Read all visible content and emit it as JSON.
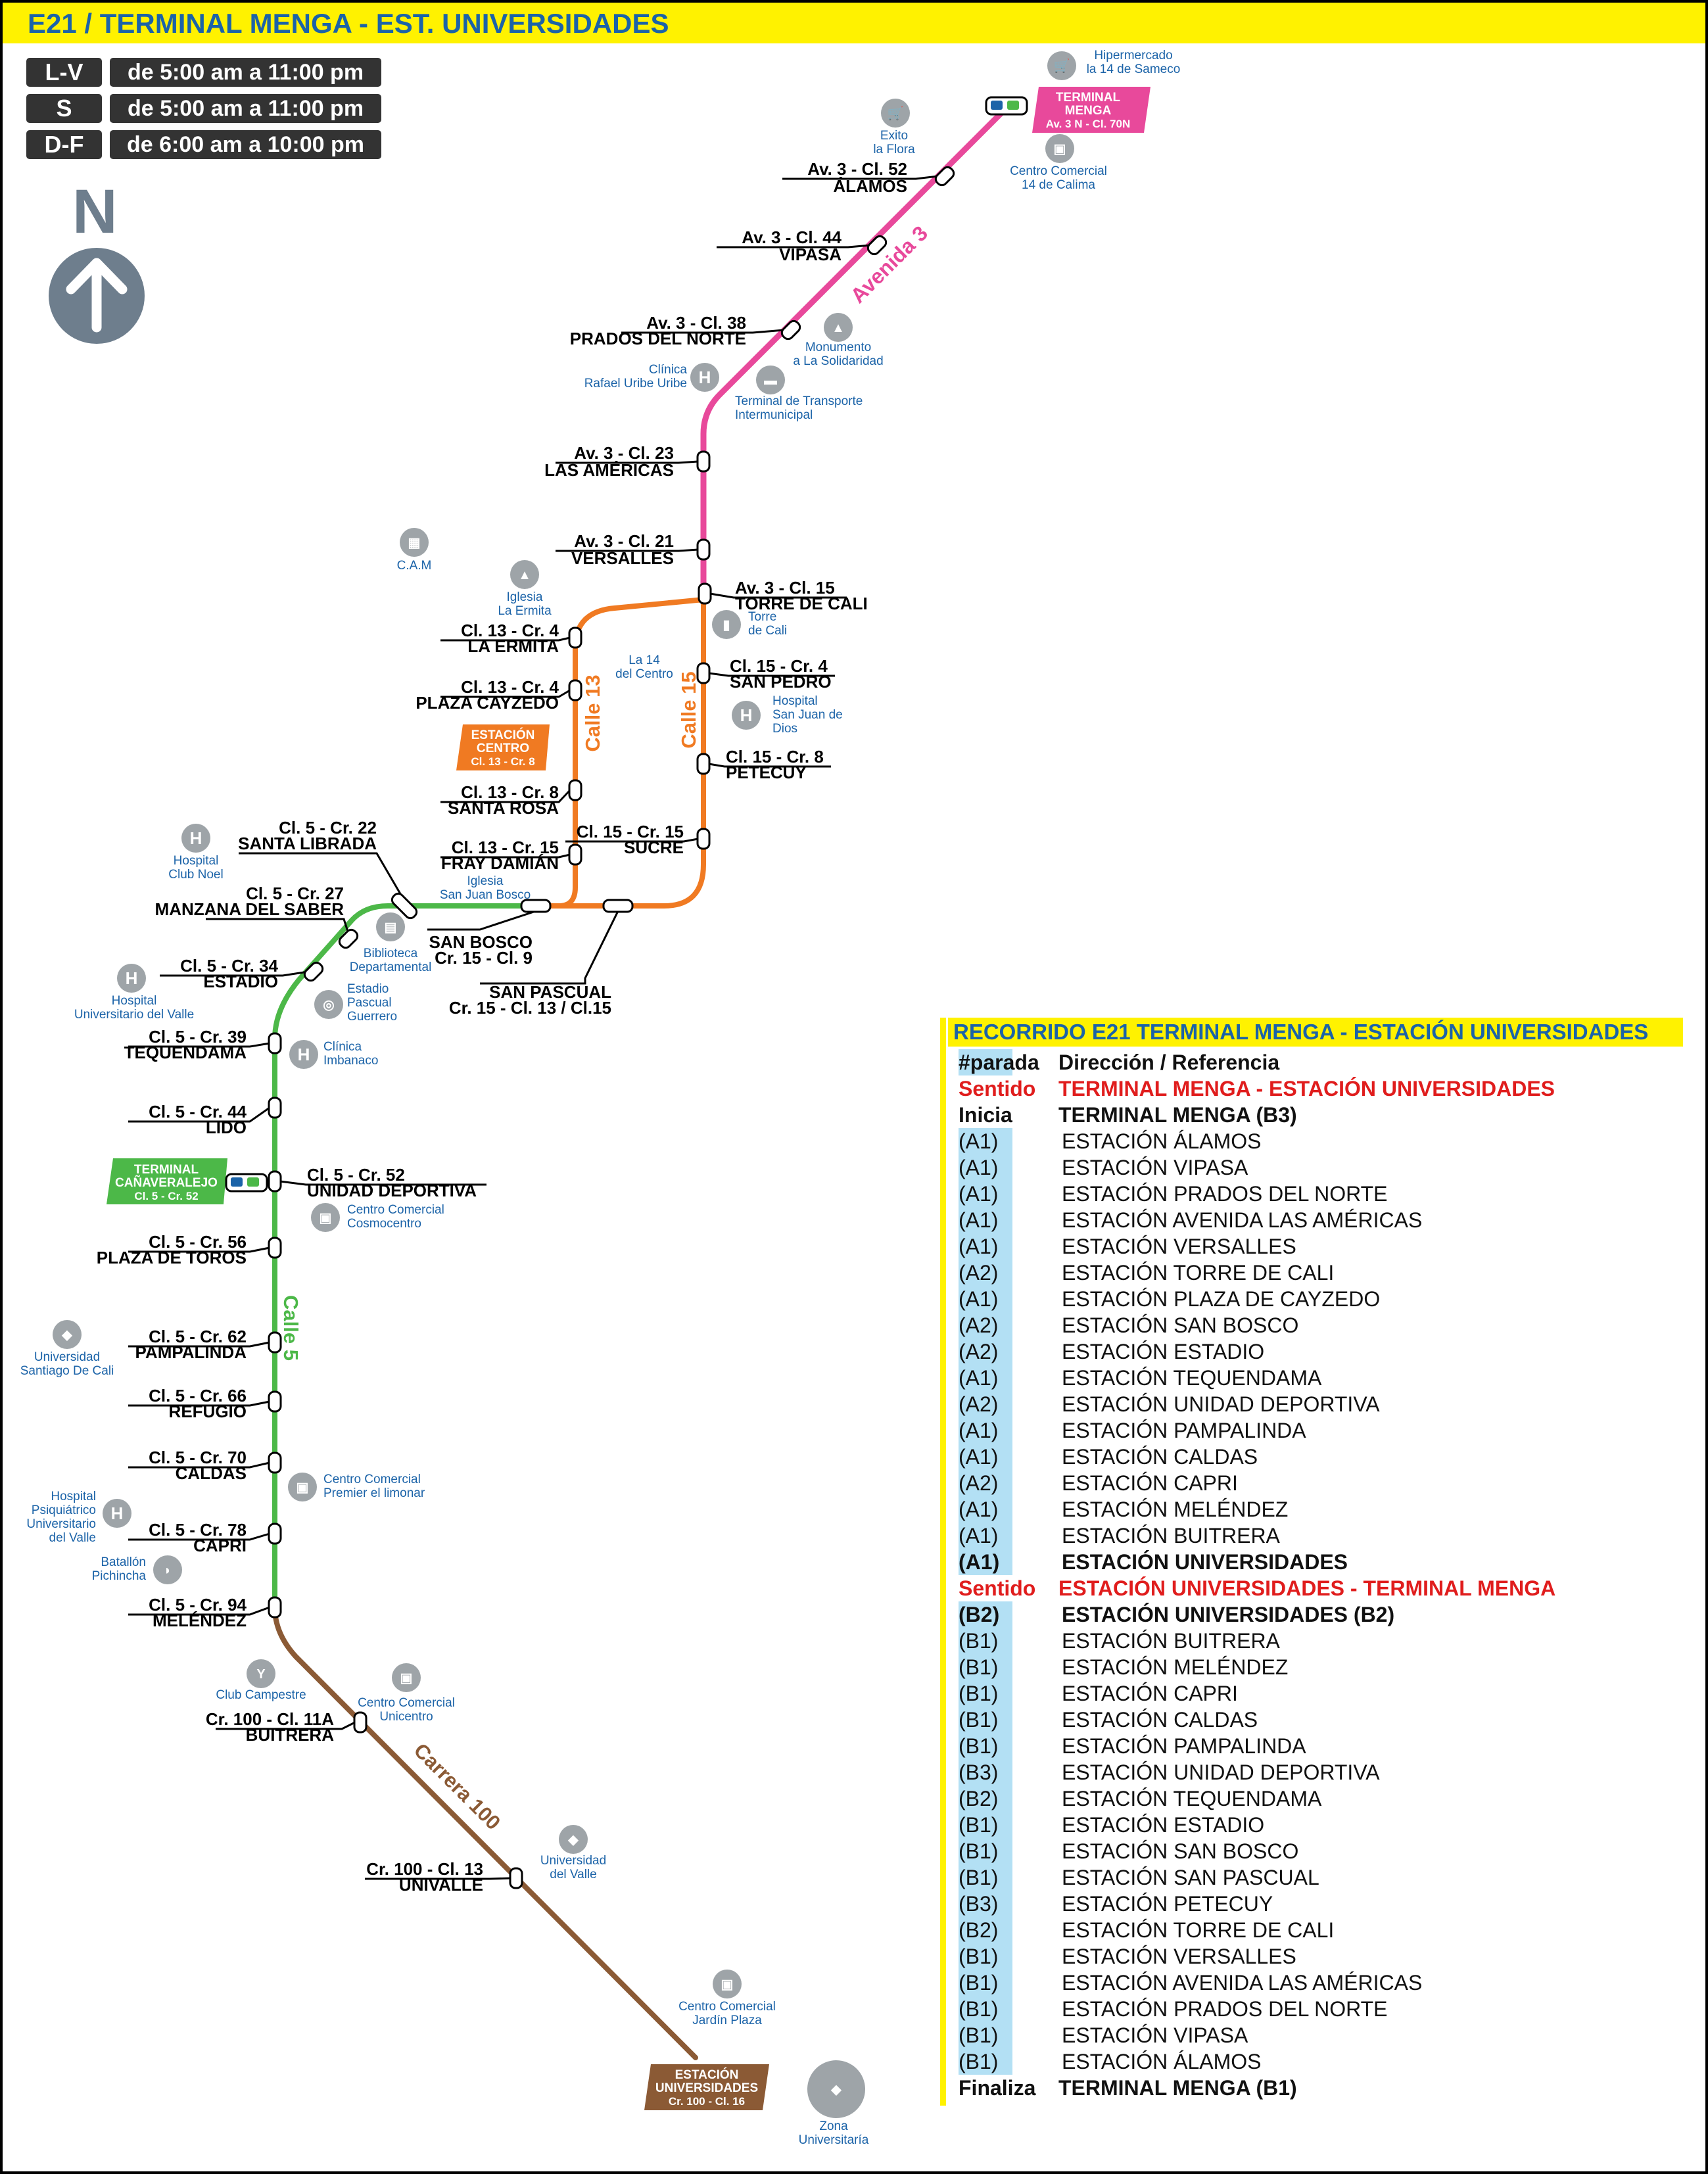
{
  "header": {
    "title": "E21 / TERMINAL MENGA - EST. UNIVERSIDADES"
  },
  "schedule": [
    {
      "day": "L-V",
      "hours": "de 5:00 am a 11:00 pm"
    },
    {
      "day": "S",
      "hours": "de 5:00 am a 11:00 pm"
    },
    {
      "day": "D-F",
      "hours": "de 6:00 am a 10:00 pm"
    }
  ],
  "north": {
    "letter": "N"
  },
  "colors": {
    "avenida3": "#e8499b",
    "calle5": "#4cb848",
    "orange": "#f07a22",
    "carrera100": "#8b5a35",
    "title_blue": "#1b63a8",
    "yellow": "#fff200",
    "red": "#e01d1d"
  },
  "street_labels": {
    "avenida3": "Avenida 3",
    "calle13": "Calle 13",
    "calle15": "Calle 15",
    "calle5": "Calle 5",
    "carrera100": "Carrera 100"
  },
  "terminals": {
    "menga": {
      "l1": "TERMINAL",
      "l2": "MENGA",
      "l3": "Av. 3 N - Cl. 70N"
    },
    "centro": {
      "l1": "ESTACIÓN",
      "l2": "CENTRO",
      "l3": "Cl. 13 - Cr. 8"
    },
    "canaveralejo": {
      "l1": "TERMINAL",
      "l2": "CAÑAVERALEJO",
      "l3": "Cl. 5 - Cr. 52"
    },
    "universidades": {
      "l1": "ESTACIÓN",
      "l2": "UNIVERSIDADES",
      "l3": "Cr. 100 - Cl. 16"
    }
  },
  "stations": [
    {
      "addr": "Av. 3 - Cl. 52",
      "name": "ÁLAMOS"
    },
    {
      "addr": "Av. 3 - Cl. 44",
      "name": "VIPASA"
    },
    {
      "addr": "Av. 3 - Cl. 38",
      "name": "PRADOS DEL NORTE"
    },
    {
      "addr": "Av. 3 - Cl. 23",
      "name": "LAS AMÉRICAS"
    },
    {
      "addr": "Av. 3 - Cl. 21",
      "name": "VERSALLES"
    },
    {
      "addr": "Av. 3 - Cl. 15",
      "name": "TORRE DE CALI"
    },
    {
      "addr": "Cl. 15 - Cr. 4",
      "name": "SAN PEDRO"
    },
    {
      "addr": "Cl. 15 - Cr. 8",
      "name": "PETECUY"
    },
    {
      "addr": "Cl. 15 - Cr. 15",
      "name": "SUCRE"
    },
    {
      "addr": "Cl. 13 - Cr. 4",
      "name": "LA ERMITA"
    },
    {
      "addr": "Cl. 13 - Cr. 4",
      "name": "PLAZA CAYZEDO"
    },
    {
      "addr": "Cl. 13 - Cr. 8",
      "name": "SANTA ROSA"
    },
    {
      "addr": "Cl. 13 - Cr. 15",
      "name": "FRAY DAMIÁN"
    },
    {
      "addr": "Cl. 5 - Cr. 22",
      "name": "SANTA LIBRADA"
    },
    {
      "addr": "Cl. 5 - Cr. 27",
      "name": "MANZANA DEL SABER"
    },
    {
      "addr": "Cl. 5 - Cr. 34",
      "name": "ESTADIO"
    },
    {
      "addr": "Cl. 5 - Cr. 39",
      "name": "TEQUENDAMA"
    },
    {
      "addr": "Cl. 5 - Cr. 44",
      "name": "LIDO"
    },
    {
      "addr": "Cl. 5 - Cr. 52",
      "name": "UNIDAD DEPORTIVA"
    },
    {
      "addr": "Cl. 5 - Cr. 56",
      "name": "PLAZA DE TOROS"
    },
    {
      "addr": "Cl. 5 - Cr. 62",
      "name": "PAMPALINDA"
    },
    {
      "addr": "Cl. 5 - Cr. 66",
      "name": "REFUGIO"
    },
    {
      "addr": "Cl. 5 - Cr. 70",
      "name": "CALDAS"
    },
    {
      "addr": "Cl. 5 - Cr. 78",
      "name": "CAPRI"
    },
    {
      "addr": "Cl. 5 - Cr. 94",
      "name": "MELÉNDEZ"
    },
    {
      "addr": "Cr. 100 - Cl. 11A",
      "name": "BUITRERA"
    },
    {
      "addr": "Cr. 100 - Cl. 13",
      "name": "UNIVALLE"
    },
    {
      "addr": "SAN BOSCO",
      "name": "Cr. 15 - Cl. 9"
    },
    {
      "addr": "SAN PASCUAL",
      "name": "Cr. 15 - Cl. 13 / Cl.15"
    }
  ],
  "landmarks": [
    {
      "l1": "Hipermercado",
      "l2": "la 14 de Sameco"
    },
    {
      "l1": "Exito",
      "l2": "la Flora"
    },
    {
      "l1": "Centro Comercial",
      "l2": "14 de Calima"
    },
    {
      "l1": "Monumento",
      "l2": "a La Solidaridad"
    },
    {
      "l1": "Clínica",
      "l2": "Rafael Uribe Uribe"
    },
    {
      "l1": "Terminal de Transporte",
      "l2": "Intermunicipal"
    },
    {
      "l1": "C.A.M",
      "l2": ""
    },
    {
      "l1": "Iglesia",
      "l2": "La Ermita"
    },
    {
      "l1": "Torre",
      "l2": "de Cali"
    },
    {
      "l1": "La 14",
      "l2": "del Centro"
    },
    {
      "l1": "Hospital",
      "l2": "San Juan de",
      "l3": "Dios"
    },
    {
      "l1": "Hospital",
      "l2": "Club Noel"
    },
    {
      "l1": "Iglesia",
      "l2": "San Juan Bosco"
    },
    {
      "l1": "Biblioteca",
      "l2": "Departamental"
    },
    {
      "l1": "Estadio",
      "l2": "Pascual",
      "l3": "Guerrero"
    },
    {
      "l1": "Hospital",
      "l2": "Universitario del Valle"
    },
    {
      "l1": "Clínica",
      "l2": "Imbanaco"
    },
    {
      "l1": "Centro Comercial",
      "l2": "Cosmocentro"
    },
    {
      "l1": "Universidad",
      "l2": "Santiago De Cali"
    },
    {
      "l1": "Centro Comercial",
      "l2": "Premier el limonar"
    },
    {
      "l1": "Hospital",
      "l2": "Psiquiátrico",
      "l3": "Universitario",
      "l4": "del Valle"
    },
    {
      "l1": "Batallón",
      "l2": "Pichincha"
    },
    {
      "l1": "Club Campestre",
      "l2": ""
    },
    {
      "l1": "Centro Comercial",
      "l2": "Unicentro"
    },
    {
      "l1": "Universidad",
      "l2": "del Valle"
    },
    {
      "l1": "Centro Comercial",
      "l2": "Jardín Plaza"
    },
    {
      "l1": "Zona",
      "l2": "Universitaría"
    }
  ],
  "legend": {
    "title": "RECORRIDO E21 TERMINAL MENGA - ESTACIÓN UNIVERSIDADES",
    "head_code": "#parada",
    "head_text": "Dirección / Referencia",
    "rows": [
      {
        "code": "Sentido",
        "text": "TERMINAL MENGA - ESTACIÓN UNIVERSIDADES"
      },
      {
        "code": "Inicia",
        "text": "TERMINAL MENGA (B3)"
      },
      {
        "code": "(A1)",
        "text": "ESTACIÓN ÁLAMOS"
      },
      {
        "code": "(A1)",
        "text": "ESTACIÓN VIPASA"
      },
      {
        "code": "(A1)",
        "text": "ESTACIÓN PRADOS DEL NORTE"
      },
      {
        "code": "(A1)",
        "text": "ESTACIÓN AVENIDA LAS AMÉRICAS"
      },
      {
        "code": "(A1)",
        "text": "ESTACIÓN VERSALLES"
      },
      {
        "code": "(A2)",
        "text": "ESTACIÓN TORRE DE CALI"
      },
      {
        "code": "(A1)",
        "text": "ESTACIÓN PLAZA DE CAYZEDO"
      },
      {
        "code": "(A2)",
        "text": "ESTACIÓN SAN BOSCO"
      },
      {
        "code": "(A2)",
        "text": "ESTACIÓN ESTADIO"
      },
      {
        "code": "(A1)",
        "text": "ESTACIÓN TEQUENDAMA"
      },
      {
        "code": "(A2)",
        "text": "ESTACIÓN UNIDAD DEPORTIVA"
      },
      {
        "code": "(A1)",
        "text": "ESTACIÓN PAMPALINDA"
      },
      {
        "code": "(A1)",
        "text": "ESTACIÓN CALDAS"
      },
      {
        "code": "(A2)",
        "text": "ESTACIÓN CAPRI"
      },
      {
        "code": "(A1)",
        "text": "ESTACIÓN MELÉNDEZ"
      },
      {
        "code": "(A1)",
        "text": "ESTACIÓN BUITRERA"
      },
      {
        "code": "(A1)",
        "text": "ESTACIÓN UNIVERSIDADES"
      },
      {
        "code": "Sentido",
        "text": "ESTACIÓN UNIVERSIDADES - TERMINAL MENGA"
      },
      {
        "code": "(B2)",
        "text": "ESTACIÓN UNIVERSIDADES (B2)"
      },
      {
        "code": "(B1)",
        "text": "ESTACIÓN BUITRERA"
      },
      {
        "code": "(B1)",
        "text": "ESTACIÓN MELÉNDEZ"
      },
      {
        "code": "(B1)",
        "text": "ESTACIÓN CAPRI"
      },
      {
        "code": "(B1)",
        "text": "ESTACIÓN CALDAS"
      },
      {
        "code": "(B1)",
        "text": "ESTACIÓN PAMPALINDA"
      },
      {
        "code": "(B3)",
        "text": "ESTACIÓN UNIDAD DEPORTIVA"
      },
      {
        "code": "(B2)",
        "text": "ESTACIÓN TEQUENDAMA"
      },
      {
        "code": "(B1)",
        "text": "ESTACIÓN ESTADIO"
      },
      {
        "code": "(B1)",
        "text": "ESTACIÓN SAN BOSCO"
      },
      {
        "code": "(B1)",
        "text": "ESTACIÓN SAN PASCUAL"
      },
      {
        "code": "(B3)",
        "text": "ESTACIÓN PETECUY"
      },
      {
        "code": "(B2)",
        "text": "ESTACIÓN TORRE DE CALI"
      },
      {
        "code": "(B1)",
        "text": "ESTACIÓN VERSALLES"
      },
      {
        "code": "(B1)",
        "text": "ESTACIÓN AVENIDA LAS AMÉRICAS"
      },
      {
        "code": "(B1)",
        "text": "ESTACIÓN PRADOS DEL NORTE"
      },
      {
        "code": "(B1)",
        "text": "ESTACIÓN VIPASA"
      },
      {
        "code": "(B1)",
        "text": "ESTACIÓN ÁLAMOS"
      },
      {
        "code": "Finaliza",
        "text": "TERMINAL MENGA (B1)"
      }
    ]
  }
}
